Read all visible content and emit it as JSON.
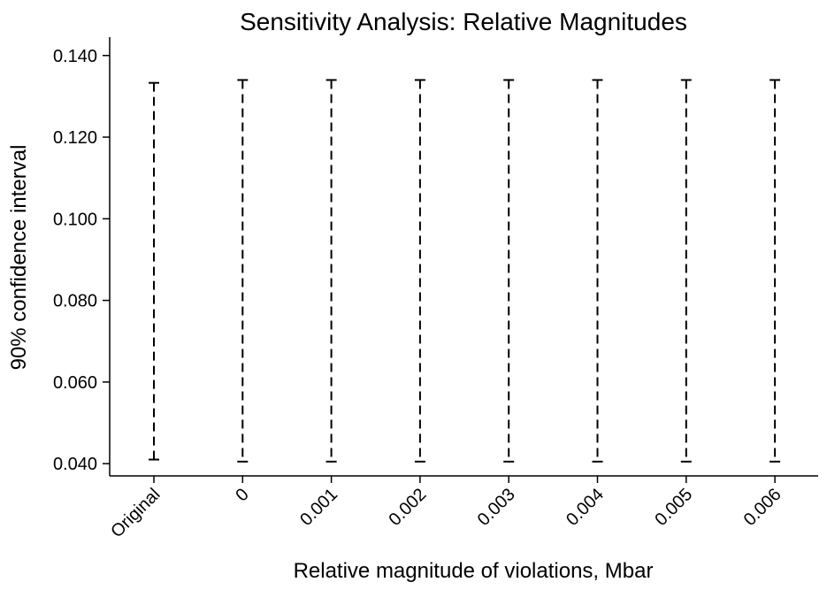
{
  "chart_data": {
    "type": "errorbar",
    "title": "Sensitivity Analysis: Relative Magnitudes",
    "xlabel": "Relative magnitude of violations, Mbar",
    "ylabel": "90% confidence interval",
    "categories": [
      "Original",
      "0",
      "0.001",
      "0.002",
      "0.003",
      "0.004",
      "0.005",
      "0.006"
    ],
    "lower": [
      0.041,
      0.0405,
      0.0405,
      0.0405,
      0.0405,
      0.0405,
      0.0405,
      0.0405
    ],
    "upper": [
      0.1333,
      0.134,
      0.134,
      0.134,
      0.134,
      0.134,
      0.134,
      0.134
    ],
    "yticks": [
      "0.040",
      "0.060",
      "0.080",
      "0.100",
      "0.120",
      "0.140"
    ],
    "ytick_values": [
      0.04,
      0.06,
      0.08,
      0.1,
      0.12,
      0.14
    ],
    "ylim": [
      0.037,
      0.1445
    ],
    "grid": false,
    "legend": "none",
    "line_color": "#000000"
  }
}
